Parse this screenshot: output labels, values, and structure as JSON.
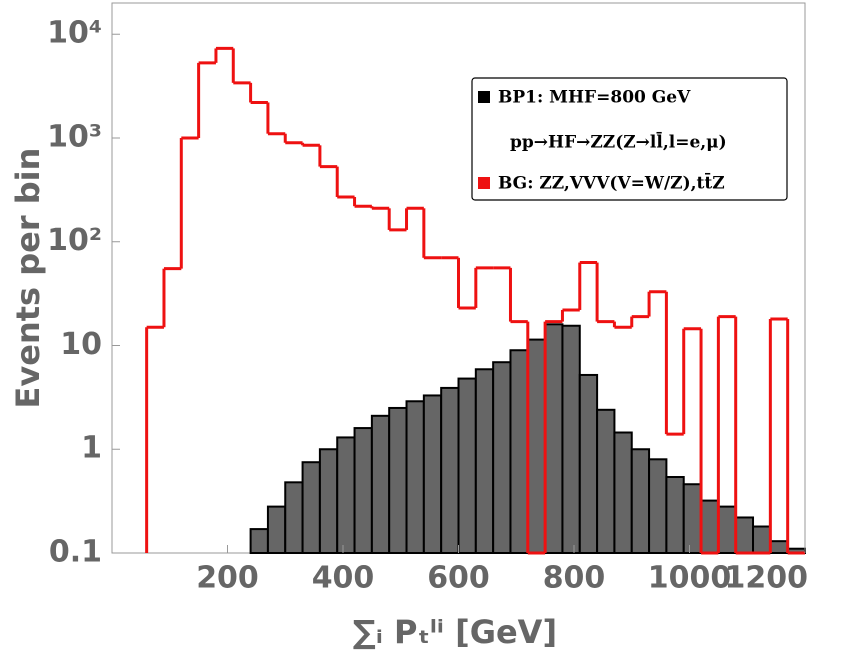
{
  "chart_data": {
    "type": "histogram",
    "xlabel": "∑ᵢ Pₜˡⁱ [GeV]",
    "ylabel": "Events per bin",
    "annotation": "pp→HF→ZZ(Z→ll̄,l=e,μ)",
    "bins": [
      60,
      90,
      120,
      150,
      180,
      210,
      240,
      270,
      300,
      330,
      360,
      390,
      420,
      450,
      480,
      510,
      540,
      570,
      600,
      630,
      660,
      690,
      720,
      750,
      780,
      810,
      840,
      870,
      900,
      930,
      960,
      990,
      1020,
      1050,
      1080,
      1110,
      1140,
      1170,
      1200
    ],
    "series": [
      {
        "name": "BP1: MHF=800 GeV",
        "color": "#666666",
        "values": [
          null,
          null,
          null,
          null,
          null,
          null,
          0.17,
          0.28,
          0.48,
          0.75,
          1.0,
          1.3,
          1.6,
          2.1,
          2.5,
          2.9,
          3.3,
          3.9,
          4.8,
          5.9,
          6.9,
          9.0,
          11.4,
          16,
          15.5,
          5.2,
          2.4,
          1.45,
          1.0,
          0.8,
          0.54,
          0.46,
          0.32,
          0.28,
          0.22,
          0.18,
          0.13,
          0.11
        ]
      },
      {
        "name": "BG: ZZ,VVV(V=W/Z),tt̄Z",
        "color": "#ee1111",
        "values": [
          15,
          55,
          1000,
          5300,
          7300,
          3400,
          2200,
          1100,
          900,
          850,
          530,
          270,
          220,
          210,
          130,
          210,
          70,
          70,
          23,
          56,
          56,
          17,
          0,
          17,
          22,
          63,
          17,
          15,
          19,
          33,
          1.4,
          14.5,
          0,
          19,
          0,
          0,
          18,
          0
        ]
      }
    ],
    "xlim": [
      0,
      1200
    ],
    "xticks": [
      200,
      400,
      600,
      800,
      1000,
      1200
    ],
    "ylim": [
      0.1,
      20000
    ],
    "log_y": true,
    "yticks": [
      0.1,
      1,
      10,
      {
        "value": 100,
        "label": "10²"
      },
      {
        "value": 1000,
        "label": "10³"
      },
      {
        "value": 10000,
        "label": "10⁴"
      }
    ],
    "legend": "upper right"
  }
}
